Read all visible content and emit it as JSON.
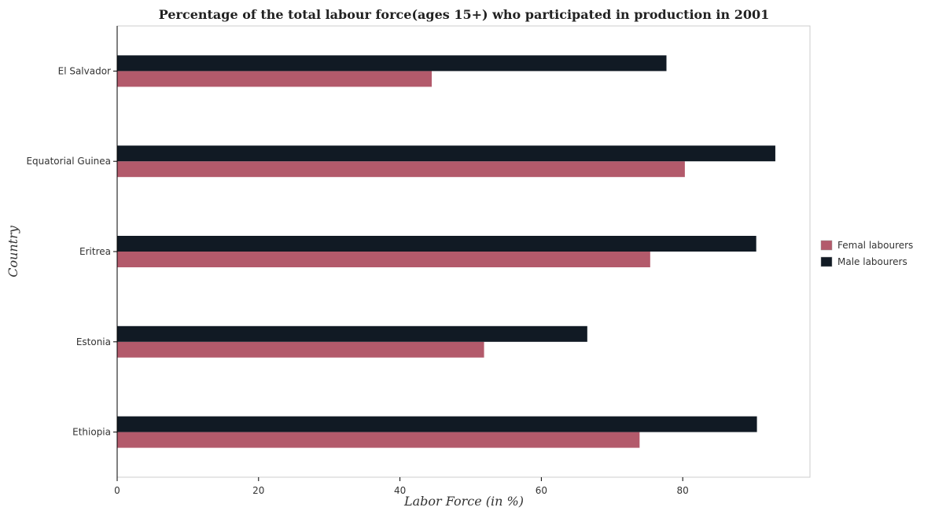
{
  "chart_data": {
    "type": "bar",
    "orientation": "horizontal",
    "title": "Percentage of the total labour force(ages 15+) who participated in production in 2001",
    "xlabel": "Labor Force (in %)",
    "ylabel": "Country",
    "categories": [
      "El Salvador",
      "Equatorial Guinea",
      "Eritrea",
      "Estonia",
      "Ethiopia"
    ],
    "series": [
      {
        "name": "Femal labourers",
        "color": "#b35a6b",
        "values": [
          44.5,
          80.3,
          75.4,
          51.9,
          73.9
        ]
      },
      {
        "name": "Male labourers",
        "color": "#111a24",
        "values": [
          77.7,
          93.1,
          90.4,
          66.5,
          90.5
        ]
      }
    ],
    "xlim": [
      0,
      98
    ],
    "xticks": [
      0,
      20,
      40,
      60,
      80
    ],
    "grid": false,
    "legend_position": "right"
  }
}
